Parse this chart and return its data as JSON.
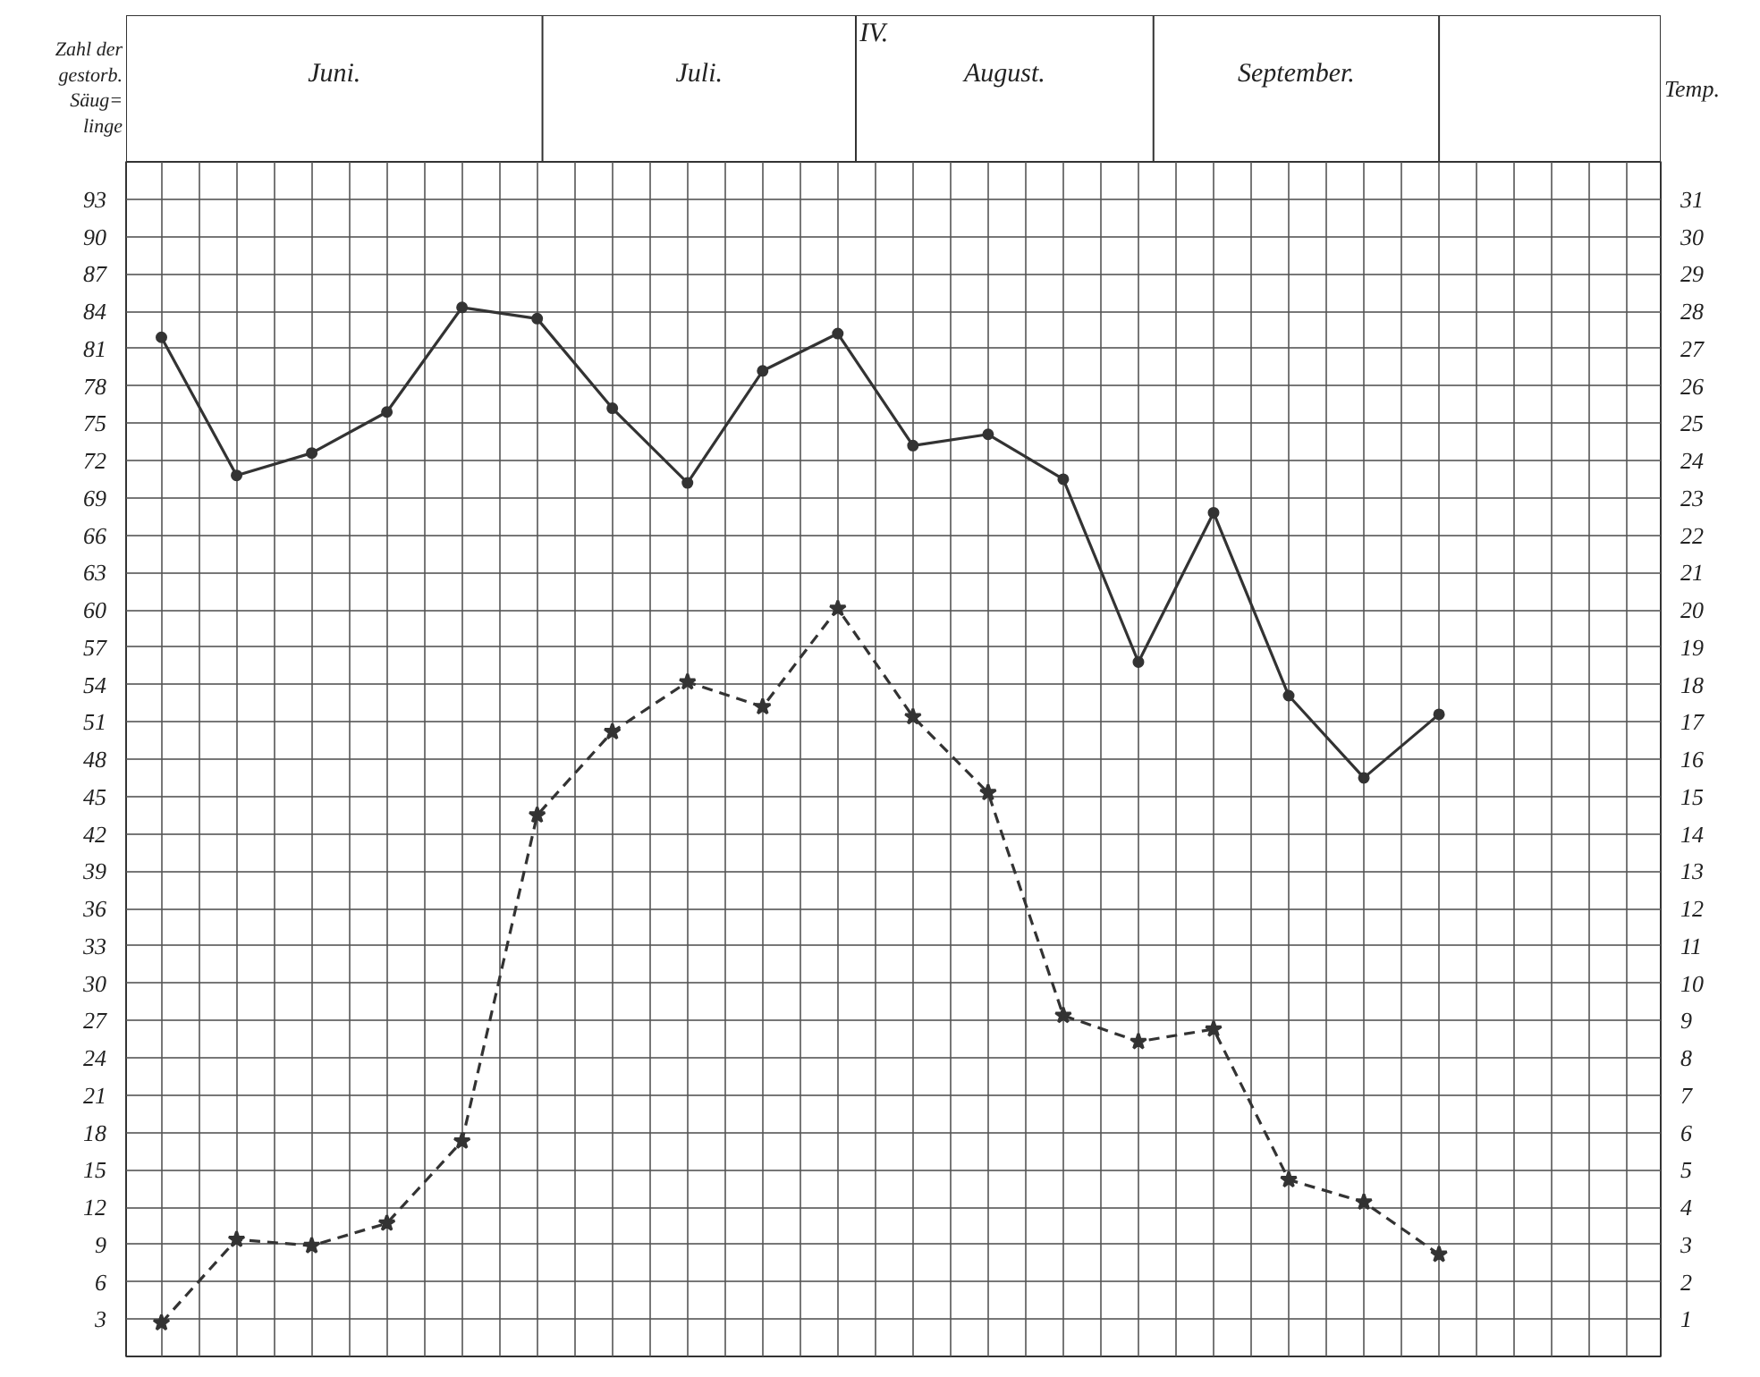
{
  "chart_data": {
    "type": "line",
    "title": "IV.",
    "ylabel": "Zahl der\ngestorb.\nSäug=\nlinge",
    "y2label": "Temp.",
    "annotations": [
      "Juni.",
      "Juli.",
      "August.",
      "September."
    ],
    "categories": [
      null,
      null,
      null,
      null,
      null,
      null,
      null,
      null,
      null,
      null,
      null,
      null,
      null,
      null,
      null,
      null,
      null,
      null
    ],
    "series": [
      {
        "color": "#333333",
        "axis": "y2",
        "marker": "circle",
        "line_style": "solid",
        "values": [
          27.3,
          23.6,
          24.2,
          25.3,
          28.1,
          27.8,
          25.4,
          23.4,
          26.4,
          27.4,
          24.4,
          24.7,
          23.5,
          18.6,
          22.6,
          17.7,
          15.5,
          17.2
        ]
      },
      {
        "color": "#333333",
        "marker": "star",
        "line_style": "dashed",
        "values": [
          2.7,
          9.4,
          8.9,
          10.7,
          17.3,
          43.5,
          50.2,
          54.2,
          52.2,
          60.1,
          51.4,
          45.3,
          27.4,
          25.3,
          26.3,
          14.2,
          12.4,
          8.2
        ]
      }
    ],
    "ylim": [
      0,
      96
    ],
    "yticks": [
      3,
      6,
      9,
      12,
      15,
      18,
      21,
      24,
      27,
      30,
      33,
      36,
      39,
      42,
      45,
      48,
      51,
      54,
      57,
      60,
      63,
      66,
      69,
      72,
      75,
      78,
      81,
      84,
      87,
      90,
      93
    ],
    "y2lim": [
      0,
      32
    ],
    "y2ticks": [
      1,
      2,
      3,
      4,
      5,
      6,
      7,
      8,
      9,
      10,
      11,
      12,
      13,
      14,
      15,
      16,
      17,
      18,
      19,
      20,
      21,
      22,
      23,
      24,
      25,
      26,
      27,
      28,
      29,
      30,
      31
    ],
    "grid": true
  }
}
